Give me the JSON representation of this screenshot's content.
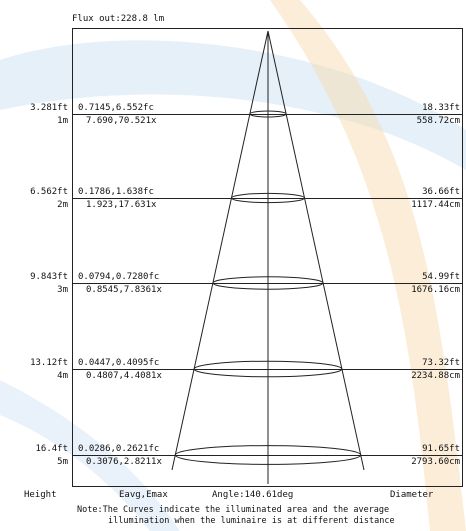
{
  "header": {
    "flux": "Flux out:228.8 lm"
  },
  "watermark": {
    "color_blue": "#cfe3f4",
    "color_orange": "#f7dcb2"
  },
  "levels": [
    {
      "height_ft": "3.281ft",
      "height_m": "1m",
      "fc": "0.7145,6.552fc",
      "lx": "7.690,70.521x",
      "diam_ft": "18.33ft",
      "diam_cm": "558.72cm"
    },
    {
      "height_ft": "6.562ft",
      "height_m": "2m",
      "fc": "0.1786,1.638fc",
      "lx": "1.923,17.631x",
      "diam_ft": "36.66ft",
      "diam_cm": "1117.44cm"
    },
    {
      "height_ft": "9.843ft",
      "height_m": "3m",
      "fc": "0.0794,0.7280fc",
      "lx": "0.8545,7.8361x",
      "diam_ft": "54.99ft",
      "diam_cm": "1676.16cm"
    },
    {
      "height_ft": "13.12ft",
      "height_m": "4m",
      "fc": "0.0447,0.4095fc",
      "lx": "0.4807,4.4081x",
      "diam_ft": "73.32ft",
      "diam_cm": "2234.88cm"
    },
    {
      "height_ft": "16.4ft",
      "height_m": "5m",
      "fc": "0.0286,0.2621fc",
      "lx": "0.3076,2.8211x",
      "diam_ft": "91.65ft",
      "diam_cm": "2793.60cm"
    }
  ],
  "footer": {
    "height_label": "Height",
    "eavg_label": "Eavg,Emax",
    "angle_label": "Angle:140.61deg",
    "diameter_label": "Diameter",
    "note_line1": "Note:The Curves indicate the illuminated area and the average",
    "note_line2": "illumination when the luminaire is at different distance"
  }
}
